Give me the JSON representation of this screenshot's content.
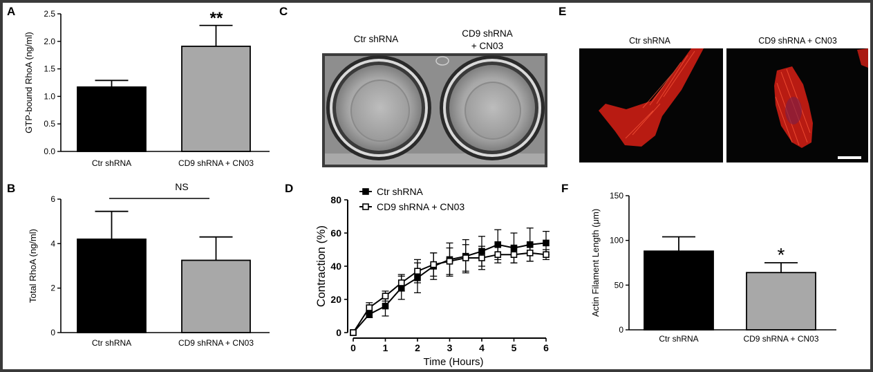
{
  "panel_letters": {
    "a": "A",
    "b": "B",
    "c": "C",
    "d": "D",
    "e": "E",
    "f": "F"
  },
  "chart_data": [
    {
      "id": "A",
      "type": "bar",
      "ylabel": "GTP-bound RhoA (ng/ml)",
      "ylim": [
        0,
        2.5
      ],
      "yticks": [
        "0.0",
        "0.5",
        "1.0",
        "1.5",
        "2.0",
        "2.5"
      ],
      "categories": [
        "Ctr shRNA",
        "CD9 shRNA + CN03"
      ],
      "values": [
        1.17,
        1.91
      ],
      "errors": [
        0.12,
        0.38
      ],
      "colors": [
        "#000000",
        "#a8a8a8"
      ],
      "annotation": "**"
    },
    {
      "id": "B",
      "type": "bar",
      "ylabel": "Total RhoA (ng/ml)",
      "ylim": [
        0,
        6
      ],
      "yticks": [
        "0",
        "2",
        "4",
        "6"
      ],
      "categories": [
        "Ctr shRNA",
        "CD9 shRNA + CN03"
      ],
      "values": [
        4.2,
        3.25
      ],
      "errors": [
        1.25,
        1.05
      ],
      "colors": [
        "#000000",
        "#a8a8a8"
      ],
      "annotation": "NS"
    },
    {
      "id": "D",
      "type": "line",
      "xlabel": "Time (Hours)",
      "ylabel": "Contraction (%)",
      "xlim": [
        0,
        6
      ],
      "ylim": [
        0,
        80
      ],
      "xticks": [
        "0",
        "1",
        "2",
        "3",
        "4",
        "5",
        "6"
      ],
      "yticks": [
        "0",
        "20",
        "40",
        "60",
        "80"
      ],
      "x": [
        0,
        0.5,
        1,
        1.5,
        2,
        2.5,
        3,
        3.5,
        4,
        4.5,
        5,
        5.5,
        6
      ],
      "series": [
        {
          "name": "Ctr shRNA",
          "marker": "filled-square",
          "values": [
            0,
            11,
            16,
            27,
            33,
            40,
            44,
            46,
            49,
            53,
            51,
            53,
            54
          ],
          "errors": [
            0,
            2,
            6,
            7,
            9,
            8,
            10,
            10,
            9,
            9,
            9,
            10,
            7
          ]
        },
        {
          "name": "CD9 shRNA + CN03",
          "marker": "open-square",
          "values": [
            0,
            15,
            22,
            30,
            37,
            41,
            43,
            45,
            45,
            47,
            47,
            48,
            47
          ],
          "errors": [
            0,
            3,
            3,
            5,
            7,
            7,
            8,
            8,
            7,
            5,
            5,
            5,
            3
          ]
        }
      ]
    },
    {
      "id": "F",
      "type": "bar",
      "ylabel": "Actin Filament Length (μm)",
      "ylim": [
        0,
        150
      ],
      "yticks": [
        "0",
        "50",
        "100",
        "150"
      ],
      "categories": [
        "Ctr shRNA",
        "CD9 shRNA + CN03"
      ],
      "values": [
        88,
        64
      ],
      "errors": [
        16,
        11
      ],
      "colors": [
        "#000000",
        "#a8a8a8"
      ],
      "annotation": "*"
    }
  ],
  "panel_c": {
    "label_left": "Ctr shRNA",
    "label_right_1": "CD9 shRNA",
    "label_right_2": "+ CN03"
  },
  "panel_e": {
    "label_left": "Ctr shRNA",
    "label_right": "CD9 shRNA + CN03"
  },
  "colors": {
    "frame": "#3a3a3a",
    "panel_bg": "#ffffff",
    "bar_dark": "#000000",
    "bar_light": "#a8a8a8",
    "actin": "#e8281e"
  }
}
